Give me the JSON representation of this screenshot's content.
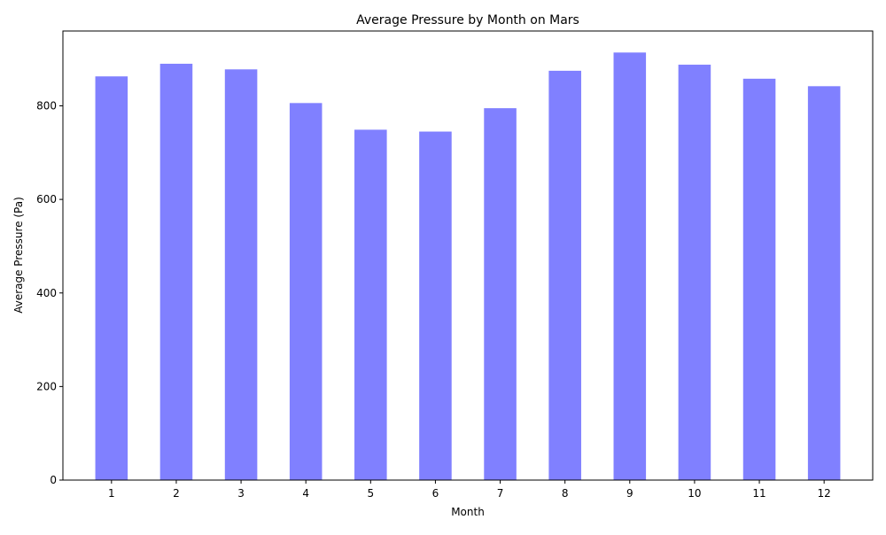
{
  "chart_data": {
    "type": "bar",
    "title": "Average Pressure by Month on Mars",
    "xlabel": "Month",
    "ylabel": "Average Pressure (Pa)",
    "categories": [
      "1",
      "2",
      "3",
      "4",
      "5",
      "6",
      "7",
      "8",
      "9",
      "10",
      "11",
      "12"
    ],
    "values": [
      863,
      890,
      878,
      806,
      749,
      745,
      795,
      875,
      914,
      888,
      858,
      842
    ],
    "ylim": [
      0,
      960
    ],
    "yticks": [
      0,
      200,
      400,
      600,
      800
    ],
    "bar_color": "#8080ff",
    "grid": false,
    "legend": "none"
  }
}
